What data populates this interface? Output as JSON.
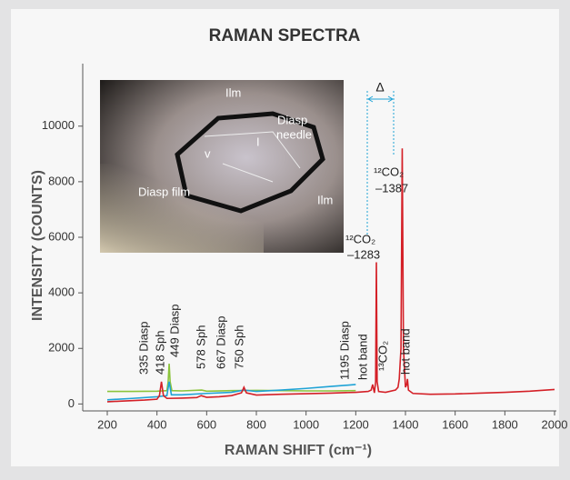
{
  "chart_data": {
    "type": "line",
    "title": "RAMAN SPECTRA",
    "xlabel": "RAMAN SHIFT (cm⁻¹)",
    "ylabel": "INTENSITY  (COUNTS)",
    "xlim": [
      200,
      2000
    ],
    "xticks": [
      200,
      400,
      600,
      800,
      1000,
      1200,
      1400,
      1600,
      1800,
      2000
    ],
    "ylim": [
      -250,
      12250
    ],
    "yticks": [
      0,
      2000,
      4000,
      6000,
      8000,
      10000
    ],
    "series": [
      {
        "color": "#8cc43c",
        "x": [
          200,
          300,
          400,
          440,
          445,
          449,
          453,
          460,
          500,
          580,
          600,
          700,
          800,
          900,
          1000,
          1100,
          1200
        ],
        "values": [
          450,
          450,
          460,
          480,
          800,
          1450,
          800,
          480,
          470,
          500,
          460,
          480,
          490,
          480,
          470,
          470,
          480
        ]
      },
      {
        "color": "#1fa3d6",
        "x": [
          200,
          300,
          400,
          440,
          449,
          458,
          500,
          600,
          700,
          750,
          800,
          900,
          1000,
          1100,
          1200
        ],
        "values": [
          150,
          200,
          260,
          300,
          800,
          330,
          330,
          380,
          420,
          500,
          450,
          500,
          560,
          630,
          700
        ]
      },
      {
        "color": "#d42027",
        "x": [
          200,
          250,
          300,
          350,
          400,
          410,
          418,
          426,
          440,
          500,
          560,
          578,
          600,
          650,
          700,
          740,
          750,
          760,
          800,
          900,
          1000,
          1100,
          1200,
          1250,
          1262,
          1268,
          1275,
          1280,
          1283,
          1286,
          1292,
          1320,
          1360,
          1370,
          1375,
          1382,
          1387,
          1392,
          1400,
          1405,
          1408,
          1412,
          1430,
          1500,
          1600,
          1700,
          1800,
          1900,
          2000
        ],
        "values": [
          80,
          100,
          120,
          140,
          170,
          300,
          800,
          300,
          200,
          210,
          230,
          300,
          240,
          260,
          300,
          400,
          600,
          400,
          320,
          350,
          370,
          390,
          420,
          450,
          500,
          700,
          400,
          800,
          5100,
          800,
          450,
          420,
          500,
          600,
          900,
          2000,
          9200,
          2000,
          600,
          700,
          900,
          500,
          380,
          350,
          360,
          390,
          420,
          460,
          520
        ]
      }
    ],
    "annotations": [
      "335 Diasp",
      "418 Sph",
      "449 Diasp",
      "578 Sph",
      "667 Diasp",
      "750 Sph",
      "1195 Diasp",
      "hot band",
      "¹³CO₂",
      "hot band",
      "¹²CO₂",
      "–1283",
      "¹²CO₂",
      "–1387",
      "Δ"
    ],
    "inset_labels": [
      "Ilm",
      "Diasp",
      "needle",
      "v",
      "I",
      "Diasp film",
      "Ilm"
    ]
  }
}
